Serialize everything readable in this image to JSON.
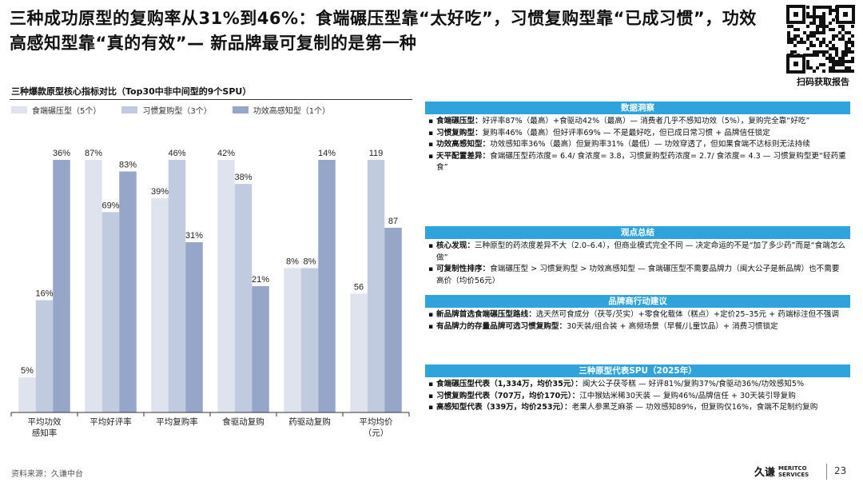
{
  "title": "三种成功原型的复购率从31%到46%：食端碾压型靠“太好吃”，习惯复购型靠“已成习惯”，功效高感知型靠“真的有效”— 新品牌最可复制的是第一种",
  "qr_label": "扫码获取报告",
  "chart_heading": "三种爆款原型核心指标对比（Top30中非中间型的9个SPU）",
  "source": "资料来源：久谦中台",
  "page_number": "23",
  "brand": {
    "cn": "久谦",
    "en_line1": "MERITCO",
    "en_line2": "SERVICES"
  },
  "colors": {
    "series1": "#dfe3ee",
    "series2": "#c1cbe0",
    "series3": "#95a6c8",
    "panel_bar": "#2ea3dc"
  },
  "chart_data": {
    "type": "bar",
    "series": [
      {
        "name": "食端碾压型（5个）",
        "values": [
          5,
          87,
          39,
          42,
          8,
          56
        ],
        "labels": [
          "5%",
          "87%",
          "39%",
          "42%",
          "8%",
          "56"
        ]
      },
      {
        "name": "习惯复购型（3个）",
        "values": [
          16,
          69,
          46,
          38,
          8,
          119
        ],
        "labels": [
          "16%",
          "69%",
          "46%",
          "38%",
          "8%",
          "119"
        ]
      },
      {
        "name": "功效高感知型（1个）",
        "values": [
          36,
          83,
          31,
          21,
          14,
          87
        ],
        "labels": [
          "36%",
          "83%",
          "31%",
          "21%",
          "14%",
          "87"
        ]
      }
    ],
    "categories": [
      "平均功效感知率",
      "平均好评率",
      "平均复购率",
      "食驱动复购",
      "药驱动复购",
      "平均均价（元）"
    ],
    "category_lines": [
      [
        "平均功效",
        "感知率"
      ],
      [
        "平均好评率"
      ],
      [
        "平均复购率"
      ],
      [
        "食驱动复购"
      ],
      [
        "药驱动复购"
      ],
      [
        "平均均价",
        "（元）"
      ]
    ],
    "group_max": [
      36,
      87,
      46,
      42,
      14,
      119
    ],
    "note": "each category group is scaled independently"
  },
  "panels": [
    {
      "header": "数据洞察",
      "items": [
        {
          "bold": "食端碾压型：",
          "text": "好评率87%（最高）+食驱动42%（最高）— 消费者几乎不感知功效（5%），复购完全靠“好吃”"
        },
        {
          "bold": "习惯复购型：",
          "text": "复购率46%（最高）但好评率69% — 不是最好吃，但已成日常习惯 + 品牌信任锁定"
        },
        {
          "bold": "功效高感知型：",
          "text": "功效感知率36%（最高）但复购率31%（最低）— 功效穿透了，但如果食端不达标则无法持续"
        },
        {
          "bold": "天平配置差异：",
          "text": "食端碾压型药浓度= 6.4/ 食浓度= 3.8，习惯复购型药浓度= 2.7/ 食浓度= 4.3 — 习惯复购型更“轻药重食”"
        }
      ]
    },
    {
      "header": "观点总结",
      "items": [
        {
          "bold": "核心发现：",
          "text": "三种原型的药浓度差异不大（2.0–6.4），但商业模式完全不同 — 决定命运的不是“加了多少药”而是“食端怎么做”"
        },
        {
          "bold": "可复制性排序：",
          "text": "食端碾压型 > 习惯复购型 > 功效高感知型 — 食端碾压型不需要品牌力（闽大公子是新品牌）也不需要高价（均价56元）"
        }
      ]
    },
    {
      "header": "品牌商行动建议",
      "items": [
        {
          "bold": "新品牌首选食端碾压型路线：",
          "text": "选天然可食成分（茯苓/芡实）+零食化载体（糕点）+定价25–35元 + 药端标注但不强调"
        },
        {
          "bold": "有品牌力的存量品牌可选习惯复购型：",
          "text": "30天装/组合装 + 高频场景（早餐/儿童饮品）+ 消费习惯锁定"
        }
      ]
    },
    {
      "header": "三种原型代表SPU（2025年）",
      "items": [
        {
          "bold": "食端碾压型代表（1,334万，均价35元）：",
          "text": "闽大公子茯苓糕 — 好评81%/复购37%/食驱动36%/功效感知5%"
        },
        {
          "bold": "习惯复购型代表（707万，均价170元）：",
          "text": "江中猴姑米稀30天装 — 复购46%/品牌信任 + 30天装引导复购"
        },
        {
          "bold": "高感知型代表（339万，均价253元）：",
          "text": "老果人参黑芝麻茶 — 功效感知89%，但复购仅16%，食端不足制约复购"
        }
      ]
    }
  ]
}
